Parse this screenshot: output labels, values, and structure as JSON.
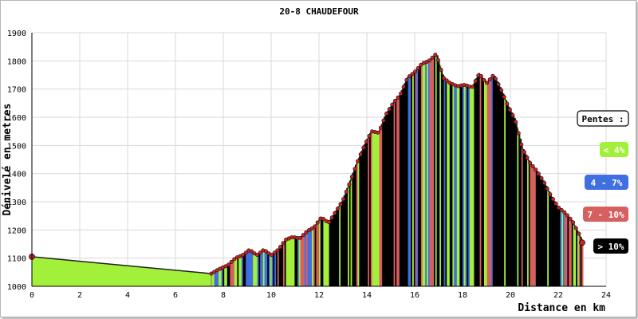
{
  "chart_data": {
    "type": "area",
    "title": "20-8 CHAUDEFOUR",
    "xlabel": "Distance en km",
    "ylabel": "Dénivelé en metres",
    "xlim": [
      0,
      24
    ],
    "ylim": [
      1000,
      1900
    ],
    "x_ticks": [
      "0",
      "2",
      "4",
      "6",
      "8",
      "10",
      "12",
      "14",
      "16",
      "18",
      "20",
      "22",
      "24"
    ],
    "y_ticks": [
      "1000",
      "1100",
      "1200",
      "1300",
      "1400",
      "1500",
      "1600",
      "1700",
      "1800",
      "1900"
    ],
    "grid": true,
    "legend_position": "right",
    "legend_title": "Pentes :",
    "legend": [
      {
        "label": "< 4%",
        "color": "#a3f03a",
        "text_color": "#ffffff"
      },
      {
        "label": "4 - 7%",
        "color": "#3f6fe0",
        "text_color": "#ffffff"
      },
      {
        "label": "7 - 10%",
        "color": "#d65f5f",
        "text_color": "#ffffff"
      },
      {
        "label": "> 10%",
        "color": "#000000",
        "text_color": "#ffffff"
      }
    ],
    "colors": {
      "slope_lt4": "#a3f03a",
      "slope_4_7": "#3f6fe0",
      "slope_7_10": "#d65f5f",
      "slope_gt10": "#000000",
      "marker": "#cc2222"
    },
    "x": [
      0,
      7.5,
      7.8,
      8.2,
      8.5,
      8.8,
      9.1,
      9.4,
      9.7,
      10.0,
      10.3,
      10.6,
      10.9,
      11.2,
      11.5,
      11.8,
      12.1,
      12.4,
      12.7,
      13.0,
      13.3,
      13.6,
      13.9,
      14.2,
      14.5,
      14.8,
      15.1,
      15.4,
      15.7,
      16.0,
      16.3,
      16.6,
      16.9,
      17.2,
      17.5,
      17.8,
      18.1,
      18.4,
      18.7,
      19.0,
      19.3,
      19.6,
      19.9,
      20.2,
      20.5,
      20.8,
      21.1,
      21.4,
      21.7,
      22.0,
      22.3,
      22.6,
      22.9,
      23.0
    ],
    "y": [
      1105,
      1045,
      1060,
      1075,
      1100,
      1110,
      1130,
      1110,
      1130,
      1110,
      1130,
      1165,
      1175,
      1170,
      1195,
      1210,
      1245,
      1225,
      1265,
      1305,
      1370,
      1440,
      1500,
      1550,
      1545,
      1610,
      1650,
      1680,
      1740,
      1760,
      1790,
      1800,
      1825,
      1740,
      1720,
      1710,
      1715,
      1705,
      1755,
      1720,
      1750,
      1700,
      1640,
      1590,
      1490,
      1440,
      1410,
      1370,
      1320,
      1280,
      1260,
      1230,
      1180,
      1155
    ]
  }
}
